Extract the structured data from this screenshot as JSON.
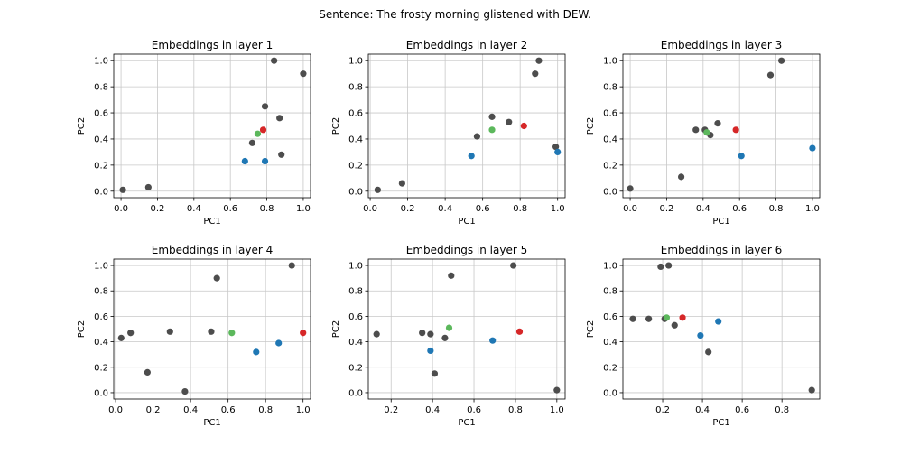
{
  "figure_title": "Sentence: The frosty morning glistened with DEW.",
  "colors": {
    "other": "#4d4d4d",
    "blue": "#1f77b4",
    "green": "#5cb85c",
    "red": "#d62728",
    "grid": "#c8c8c8",
    "axis": "#000000"
  },
  "chart_data": [
    {
      "type": "scatter",
      "title": "Embeddings in layer 1",
      "xlabel": "PC1",
      "ylabel": "PC2",
      "xlim": [
        -0.04,
        1.04
      ],
      "ylim": [
        -0.05,
        1.05
      ],
      "xticks": [
        0.0,
        0.2,
        0.4,
        0.6,
        0.8,
        1.0
      ],
      "yticks": [
        0.0,
        0.2,
        0.4,
        0.6,
        0.8,
        1.0
      ],
      "tick_format": 1,
      "points": [
        {
          "x": 0.01,
          "y": 0.01,
          "c": "other"
        },
        {
          "x": 0.15,
          "y": 0.03,
          "c": "other"
        },
        {
          "x": 0.72,
          "y": 0.37,
          "c": "other"
        },
        {
          "x": 0.79,
          "y": 0.65,
          "c": "other"
        },
        {
          "x": 0.84,
          "y": 1.0,
          "c": "other"
        },
        {
          "x": 0.87,
          "y": 0.56,
          "c": "other"
        },
        {
          "x": 0.88,
          "y": 0.28,
          "c": "other"
        },
        {
          "x": 1.0,
          "y": 0.9,
          "c": "other"
        },
        {
          "x": 0.68,
          "y": 0.23,
          "c": "blue"
        },
        {
          "x": 0.79,
          "y": 0.23,
          "c": "blue"
        },
        {
          "x": 0.75,
          "y": 0.44,
          "c": "green"
        },
        {
          "x": 0.78,
          "y": 0.47,
          "c": "red"
        }
      ]
    },
    {
      "type": "scatter",
      "title": "Embeddings in layer 2",
      "xlabel": "PC1",
      "ylabel": "PC2",
      "xlim": [
        -0.01,
        1.04
      ],
      "ylim": [
        -0.05,
        1.05
      ],
      "xticks": [
        0.0,
        0.2,
        0.4,
        0.6,
        0.8,
        1.0
      ],
      "yticks": [
        0.0,
        0.2,
        0.4,
        0.6,
        0.8,
        1.0
      ],
      "tick_format": 1,
      "points": [
        {
          "x": 0.04,
          "y": 0.01,
          "c": "other"
        },
        {
          "x": 0.17,
          "y": 0.06,
          "c": "other"
        },
        {
          "x": 0.57,
          "y": 0.42,
          "c": "other"
        },
        {
          "x": 0.65,
          "y": 0.57,
          "c": "other"
        },
        {
          "x": 0.74,
          "y": 0.53,
          "c": "other"
        },
        {
          "x": 0.88,
          "y": 0.9,
          "c": "other"
        },
        {
          "x": 0.9,
          "y": 1.0,
          "c": "other"
        },
        {
          "x": 0.99,
          "y": 0.34,
          "c": "other"
        },
        {
          "x": 0.54,
          "y": 0.27,
          "c": "blue"
        },
        {
          "x": 1.0,
          "y": 0.3,
          "c": "blue"
        },
        {
          "x": 0.65,
          "y": 0.47,
          "c": "green"
        },
        {
          "x": 0.82,
          "y": 0.5,
          "c": "red"
        }
      ]
    },
    {
      "type": "scatter",
      "title": "Embeddings in layer 3",
      "xlabel": "PC1",
      "ylabel": "PC2",
      "xlim": [
        -0.04,
        1.04
      ],
      "ylim": [
        -0.05,
        1.05
      ],
      "xticks": [
        0.0,
        0.2,
        0.4,
        0.6,
        0.8,
        1.0
      ],
      "yticks": [
        0.0,
        0.2,
        0.4,
        0.6,
        0.8,
        1.0
      ],
      "tick_format": 1,
      "points": [
        {
          "x": 0.0,
          "y": 0.02,
          "c": "other"
        },
        {
          "x": 0.28,
          "y": 0.11,
          "c": "other"
        },
        {
          "x": 0.36,
          "y": 0.47,
          "c": "other"
        },
        {
          "x": 0.41,
          "y": 0.47,
          "c": "other"
        },
        {
          "x": 0.44,
          "y": 0.43,
          "c": "other"
        },
        {
          "x": 0.48,
          "y": 0.52,
          "c": "other"
        },
        {
          "x": 0.77,
          "y": 0.89,
          "c": "other"
        },
        {
          "x": 0.83,
          "y": 1.0,
          "c": "other"
        },
        {
          "x": 0.61,
          "y": 0.27,
          "c": "blue"
        },
        {
          "x": 1.0,
          "y": 0.33,
          "c": "blue"
        },
        {
          "x": 0.42,
          "y": 0.45,
          "c": "green"
        },
        {
          "x": 0.58,
          "y": 0.47,
          "c": "red"
        }
      ]
    },
    {
      "type": "scatter",
      "title": "Embeddings in layer 4",
      "xlabel": "PC1",
      "ylabel": "PC2",
      "xlim": [
        -0.01,
        1.04
      ],
      "ylim": [
        -0.05,
        1.05
      ],
      "xticks": [
        0.0,
        0.2,
        0.4,
        0.6,
        0.8,
        1.0
      ],
      "yticks": [
        0.0,
        0.2,
        0.4,
        0.6,
        0.8,
        1.0
      ],
      "tick_format": 1,
      "points": [
        {
          "x": 0.03,
          "y": 0.43,
          "c": "other"
        },
        {
          "x": 0.08,
          "y": 0.47,
          "c": "other"
        },
        {
          "x": 0.17,
          "y": 0.16,
          "c": "other"
        },
        {
          "x": 0.29,
          "y": 0.48,
          "c": "other"
        },
        {
          "x": 0.37,
          "y": 0.01,
          "c": "other"
        },
        {
          "x": 0.51,
          "y": 0.48,
          "c": "other"
        },
        {
          "x": 0.54,
          "y": 0.9,
          "c": "other"
        },
        {
          "x": 0.94,
          "y": 1.0,
          "c": "other"
        },
        {
          "x": 0.75,
          "y": 0.32,
          "c": "blue"
        },
        {
          "x": 0.87,
          "y": 0.39,
          "c": "blue"
        },
        {
          "x": 0.62,
          "y": 0.47,
          "c": "green"
        },
        {
          "x": 1.0,
          "y": 0.47,
          "c": "red"
        }
      ]
    },
    {
      "type": "scatter",
      "title": "Embeddings in layer 5",
      "xlabel": "PC1",
      "ylabel": "PC2",
      "xlim": [
        0.09,
        1.04
      ],
      "ylim": [
        -0.05,
        1.05
      ],
      "xticks": [
        0.2,
        0.4,
        0.6,
        0.8,
        1.0
      ],
      "yticks": [
        0.0,
        0.2,
        0.4,
        0.6,
        0.8,
        1.0
      ],
      "tick_format": 1,
      "points": [
        {
          "x": 0.13,
          "y": 0.46,
          "c": "other"
        },
        {
          "x": 0.35,
          "y": 0.47,
          "c": "other"
        },
        {
          "x": 0.39,
          "y": 0.46,
          "c": "other"
        },
        {
          "x": 0.41,
          "y": 0.15,
          "c": "other"
        },
        {
          "x": 0.46,
          "y": 0.43,
          "c": "other"
        },
        {
          "x": 0.49,
          "y": 0.92,
          "c": "other"
        },
        {
          "x": 0.79,
          "y": 1.0,
          "c": "other"
        },
        {
          "x": 1.0,
          "y": 0.02,
          "c": "other"
        },
        {
          "x": 0.39,
          "y": 0.33,
          "c": "blue"
        },
        {
          "x": 0.69,
          "y": 0.41,
          "c": "blue"
        },
        {
          "x": 0.48,
          "y": 0.51,
          "c": "green"
        },
        {
          "x": 0.82,
          "y": 0.48,
          "c": "red"
        }
      ]
    },
    {
      "type": "scatter",
      "title": "Embeddings in layer 6",
      "xlabel": "PC1",
      "ylabel": "PC2",
      "xlim": [
        0.0,
        0.99
      ],
      "ylim": [
        -0.05,
        1.05
      ],
      "xticks": [
        0.2,
        0.4,
        0.6,
        0.8
      ],
      "yticks": [
        0.0,
        0.2,
        0.4,
        0.6,
        0.8,
        1.0
      ],
      "tick_format": 1,
      "points": [
        {
          "x": 0.05,
          "y": 0.58,
          "c": "other"
        },
        {
          "x": 0.13,
          "y": 0.58,
          "c": "other"
        },
        {
          "x": 0.19,
          "y": 0.99,
          "c": "other"
        },
        {
          "x": 0.21,
          "y": 0.58,
          "c": "other"
        },
        {
          "x": 0.23,
          "y": 1.0,
          "c": "other"
        },
        {
          "x": 0.26,
          "y": 0.53,
          "c": "other"
        },
        {
          "x": 0.43,
          "y": 0.32,
          "c": "other"
        },
        {
          "x": 0.95,
          "y": 0.02,
          "c": "other"
        },
        {
          "x": 0.39,
          "y": 0.45,
          "c": "blue"
        },
        {
          "x": 0.48,
          "y": 0.56,
          "c": "blue"
        },
        {
          "x": 0.22,
          "y": 0.59,
          "c": "green"
        },
        {
          "x": 0.3,
          "y": 0.59,
          "c": "red"
        }
      ]
    }
  ]
}
